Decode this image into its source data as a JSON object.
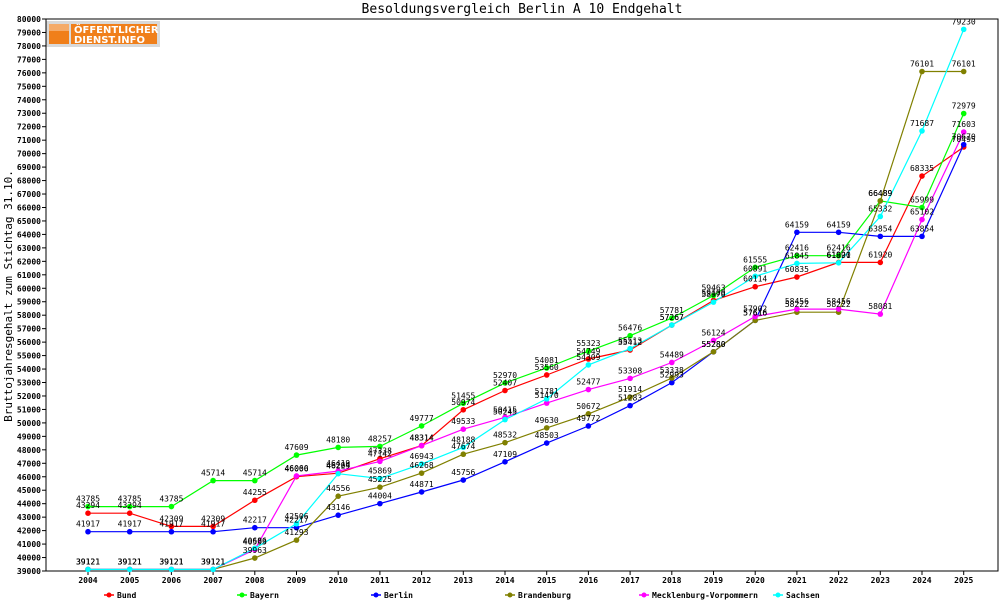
{
  "logo": {
    "line1": "ÖFFENTLICHER",
    "line2": "DIENST.INFO"
  },
  "chart_data": {
    "type": "line",
    "title": "Besoldungsvergleich Berlin A 10 Endgehalt",
    "xlabel": "",
    "ylabel": "Bruttojahresgehalt zum Stichtag 31.10.",
    "ylim": [
      39000,
      80000
    ],
    "y_tick_step": 1000,
    "grid": false,
    "legend_position": "bottom",
    "categories": [
      "2004",
      "2005",
      "2006",
      "2007",
      "2008",
      "2009",
      "2010",
      "2011",
      "2012",
      "2013",
      "2014",
      "2015",
      "2016",
      "2017",
      "2018",
      "2019",
      "2020",
      "2021",
      "2022",
      "2023",
      "2024",
      "2025"
    ],
    "series": [
      {
        "name": "Bund",
        "color": "#ff0000",
        "values": [
          43294,
          43294,
          42309,
          42309,
          44255,
          46006,
          46264,
          47338,
          48314,
          50974,
          52407,
          53560,
          54749,
          55412,
          57267,
          59100,
          60114,
          60835,
          61920,
          61920,
          68335,
          70495
        ]
      },
      {
        "name": "Bayern",
        "color": "#00ff00",
        "values": [
          43785,
          43785,
          43785,
          45714,
          45714,
          47609,
          48180,
          48257,
          49777,
          51455,
          52970,
          54081,
          55323,
          56476,
          57781,
          59463,
          61555,
          62416,
          62416,
          66489,
          65999,
          72979
        ]
      },
      {
        "name": "Berlin",
        "color": "#0000ff",
        "values": [
          41917,
          41917,
          41917,
          41917,
          42217,
          42217,
          43146,
          44004,
          44871,
          45756,
          47109,
          48503,
          49772,
          51283,
          52993,
          55280,
          57616,
          64159,
          64159,
          63854,
          63854,
          70670
        ]
      },
      {
        "name": "Brandenburg",
        "color": "#808000",
        "values": [
          39121,
          39121,
          39121,
          39121,
          39963,
          41293,
          44556,
          45225,
          46268,
          47674,
          48532,
          49630,
          50672,
          51914,
          53338,
          55280,
          57616,
          58222,
          58222,
          66489,
          76101,
          76101
        ]
      },
      {
        "name": "Mecklenburg-Vorpommern",
        "color": "#ff00ff",
        "values": [
          39121,
          39121,
          39121,
          39121,
          40593,
          46060,
          46419,
          47142,
          48314,
          49533,
          50415,
          51470,
          52477,
          53308,
          54489,
          56124,
          57902,
          58456,
          58456,
          58081,
          65102,
          71603
        ]
      },
      {
        "name": "Sachsen",
        "color": "#00ffff",
        "values": [
          39121,
          39121,
          39121,
          39121,
          40686,
          42506,
          46229,
          45869,
          46943,
          48188,
          50245,
          51781,
          54309,
          55513,
          57267,
          58970,
          60891,
          61845,
          61891,
          65332,
          71687,
          79230
        ]
      }
    ]
  }
}
